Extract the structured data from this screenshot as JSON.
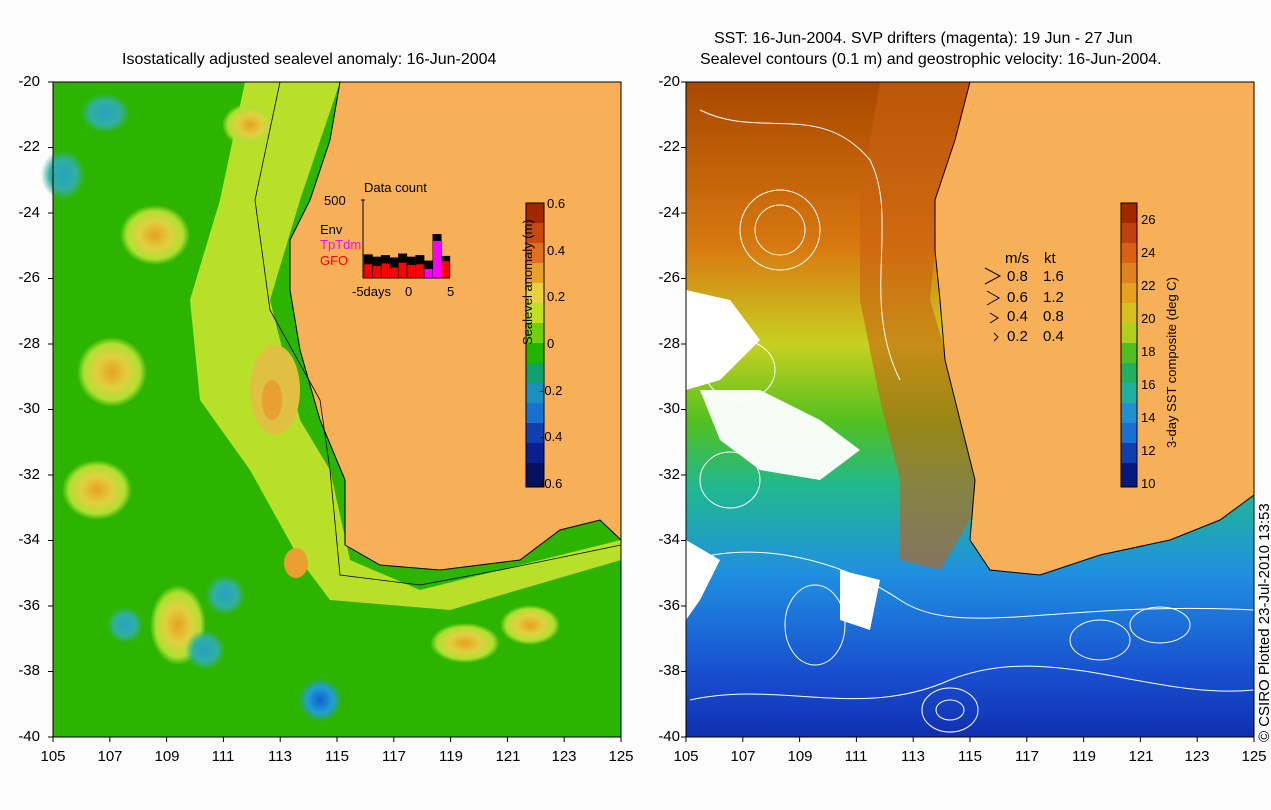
{
  "left_panel": {
    "title": "Isostatically adjusted sealevel anomaly: 16-Jun-2004",
    "colorbar_label": "Sealevel anomaly (m)",
    "colorbar_ticks": [
      "0.6",
      "0.4",
      "0.2",
      "0",
      "-0.2",
      "-0.4",
      "-0.6"
    ],
    "data_count": {
      "title": "Data count",
      "ymax_label": "500",
      "legend": [
        {
          "label": "Env",
          "color": "#000000"
        },
        {
          "label": "TpTdm",
          "color": "#ff00ff"
        },
        {
          "label": "GFO",
          "color": "#ff0000"
        }
      ],
      "x_ticks": [
        "-5days",
        "0",
        "5"
      ],
      "bars": [
        {
          "day": -5,
          "env": 60,
          "tptdm": 0,
          "gfo": 90
        },
        {
          "day": -4,
          "env": 55,
          "tptdm": 0,
          "gfo": 80
        },
        {
          "day": -3,
          "env": 50,
          "tptdm": 0,
          "gfo": 95
        },
        {
          "day": -2,
          "env": 60,
          "tptdm": 0,
          "gfo": 70
        },
        {
          "day": -1,
          "env": 55,
          "tptdm": 0,
          "gfo": 100
        },
        {
          "day": 0,
          "env": 50,
          "tptdm": 0,
          "gfo": 85
        },
        {
          "day": 1,
          "env": 55,
          "tptdm": 0,
          "gfo": 90
        },
        {
          "day": 2,
          "env": 50,
          "tptdm": 60,
          "gfo": 0
        },
        {
          "day": 3,
          "env": 40,
          "tptdm": 240,
          "gfo": 0
        },
        {
          "day": 4,
          "env": 30,
          "tptdm": 0,
          "gfo": 110
        }
      ]
    }
  },
  "right_panel": {
    "title_line1": "SST: 16-Jun-2004. SVP drifters (magenta): 19 Jun - 27 Jun",
    "title_line2": "Sealevel contours (0.1 m) and geostrophic velocity: 16-Jun-2004.",
    "colorbar_label": "3-day SST composite (deg C)",
    "colorbar_ticks": [
      "26",
      "24",
      "22",
      "20",
      "18",
      "16",
      "14",
      "12",
      "10"
    ],
    "velocity_legend": {
      "header_ms": "m/s",
      "header_kt": "kt",
      "rows": [
        {
          "ms": "0.8",
          "kt": "1.6"
        },
        {
          "ms": "0.6",
          "kt": "1.2"
        },
        {
          "ms": "0.4",
          "kt": "0.8"
        },
        {
          "ms": "0.2",
          "kt": "0.4"
        }
      ]
    }
  },
  "axes": {
    "y_ticks": [
      "-20",
      "-22",
      "-24",
      "-26",
      "-28",
      "-30",
      "-32",
      "-34",
      "-36",
      "-38",
      "-40"
    ],
    "x_ticks": [
      "105",
      "107",
      "109",
      "111",
      "113",
      "115",
      "117",
      "119",
      "121",
      "123",
      "125"
    ]
  },
  "credit": "© CSIRO Plotted 23-Jul-2010 13:53",
  "colors": {
    "land": "#f8b058",
    "ocean_green": "#2db400",
    "ssta_yellow": "#c8e020",
    "sst_orange": "#e07a10",
    "sst_blue": "#2888e0"
  }
}
